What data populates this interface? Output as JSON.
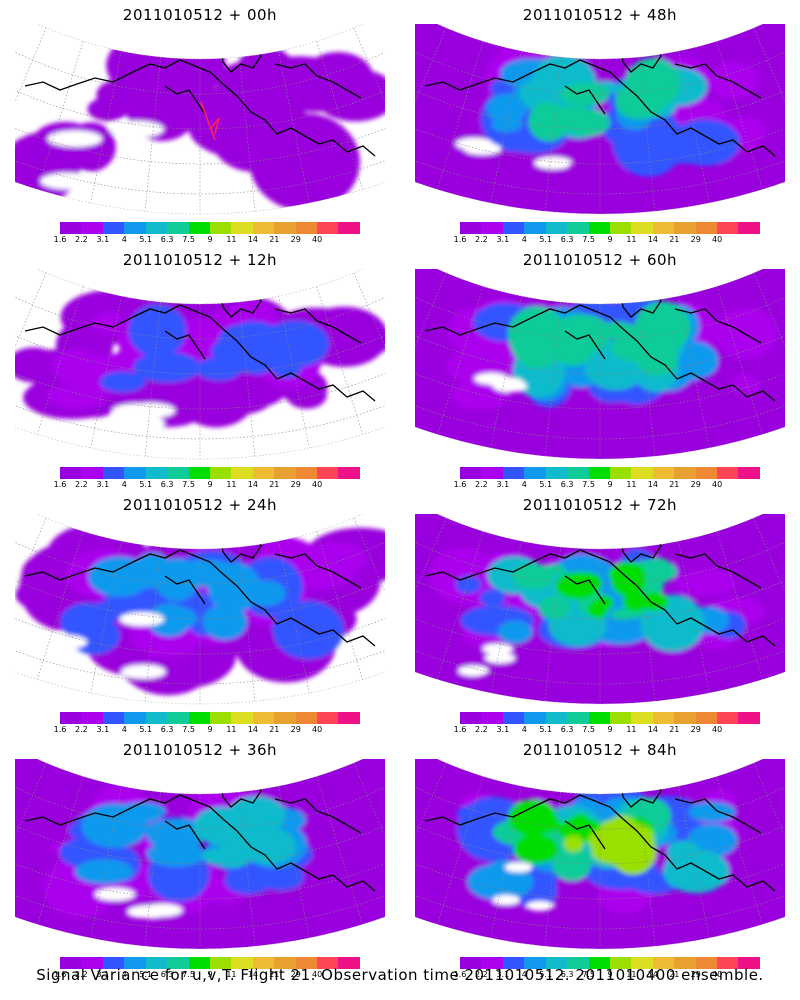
{
  "panels": [
    {
      "title": "2011010512 + 00h",
      "level": 0.15,
      "track": true
    },
    {
      "title": "2011010512 + 12h",
      "level": 0.3,
      "track": false
    },
    {
      "title": "2011010512 + 24h",
      "level": 0.42,
      "track": false
    },
    {
      "title": "2011010512 + 36h",
      "level": 0.55,
      "track": false
    },
    {
      "title": "2011010512 + 48h",
      "level": 0.62,
      "track": false
    },
    {
      "title": "2011010512 + 60h",
      "level": 0.72,
      "track": false
    },
    {
      "title": "2011010512 + 72h",
      "level": 0.82,
      "track": false
    },
    {
      "title": "2011010512 + 84h",
      "level": 0.9,
      "track": false
    }
  ],
  "colorbar": {
    "colors": [
      "#9900dd",
      "#aa00ee",
      "#3355ff",
      "#1199ee",
      "#11bbcc",
      "#11cc99",
      "#00dd00",
      "#99e000",
      "#dddd22",
      "#eebb33",
      "#e8a030",
      "#ee8833",
      "#ff4455",
      "#ee1188"
    ],
    "labels": [
      "1.6",
      "2.2",
      "3.1",
      "4",
      "5.1",
      "6.3",
      "7.5",
      "9",
      "11",
      "14",
      "21",
      "29",
      "40"
    ]
  },
  "footer": "Signal Variance for u,v,T. Flight 21. Observation time 2011010512. 2011010400 ensemble."
}
